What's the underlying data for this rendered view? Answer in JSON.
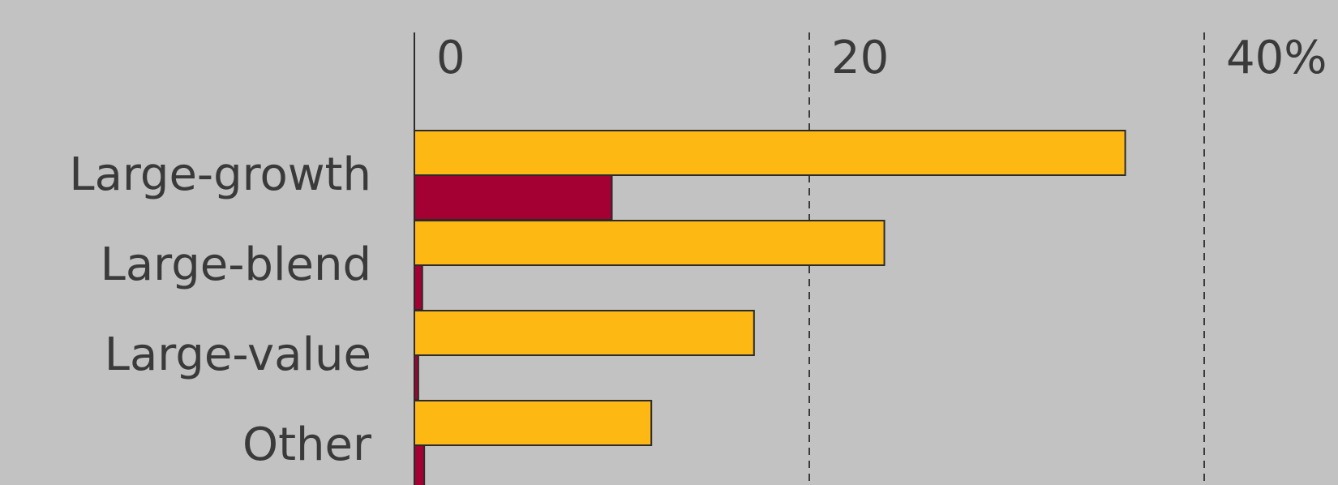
{
  "chart_data": {
    "type": "bar",
    "orientation": "horizontal",
    "categories": [
      "Large-growth",
      "Large-blend",
      "Large-value",
      "Other"
    ],
    "series": [
      {
        "color": "#fdb813",
        "values": [
          36,
          23.8,
          17.2,
          12
        ]
      },
      {
        "color": "#a50034",
        "values": [
          10,
          0.4,
          0.2,
          0.5
        ]
      }
    ],
    "x_ticks": [
      {
        "value": 0,
        "label": "0"
      },
      {
        "value": 20,
        "label": "20"
      },
      {
        "value": 40,
        "label": "40%"
      }
    ],
    "xlim": [
      0,
      40
    ],
    "grid": "vertical dashed",
    "legend": "none"
  }
}
